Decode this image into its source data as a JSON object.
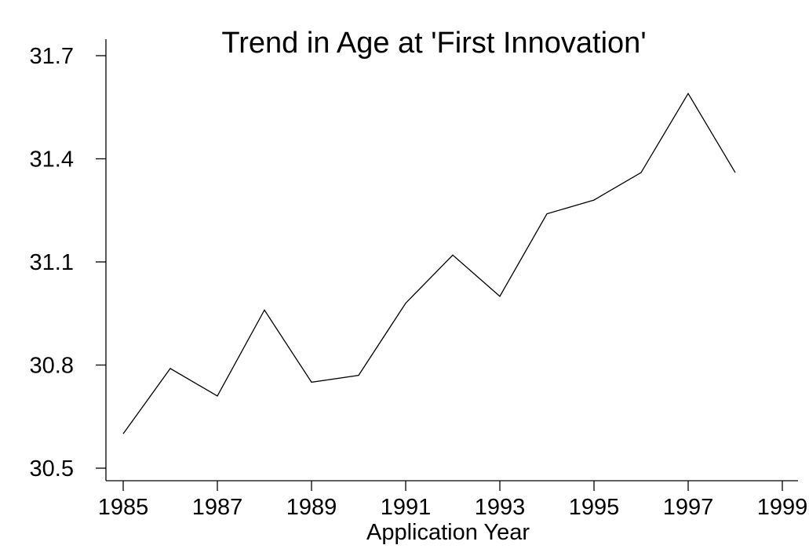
{
  "chart_data": {
    "type": "line",
    "title": "Trend in Age at 'First Innovation'",
    "xlabel": "Application Year",
    "ylabel": "",
    "xlim": [
      1985,
      1999
    ],
    "ylim": [
      30.5,
      31.7
    ],
    "xticks": [
      1985,
      1987,
      1989,
      1991,
      1993,
      1995,
      1997,
      1999
    ],
    "yticks": [
      30.5,
      30.8,
      31.1,
      31.4,
      31.7
    ],
    "xtick_labels": [
      "1985",
      "1987",
      "1989",
      "1991",
      "1993",
      "1995",
      "1997",
      "1999"
    ],
    "ytick_labels": [
      "30.5",
      "30.8",
      "31.1",
      "31.4",
      "31.7"
    ],
    "grid": false,
    "legend": false,
    "series": [
      {
        "x": [
          1985,
          1986,
          1987,
          1988,
          1989,
          1990,
          1991,
          1992,
          1993,
          1994,
          1995,
          1996,
          1997,
          1998
        ],
        "values": [
          30.6,
          30.79,
          30.71,
          30.96,
          30.75,
          30.77,
          30.98,
          31.12,
          31.0,
          31.24,
          31.28,
          31.36,
          31.59,
          31.36
        ],
        "color": "#000000"
      }
    ]
  }
}
